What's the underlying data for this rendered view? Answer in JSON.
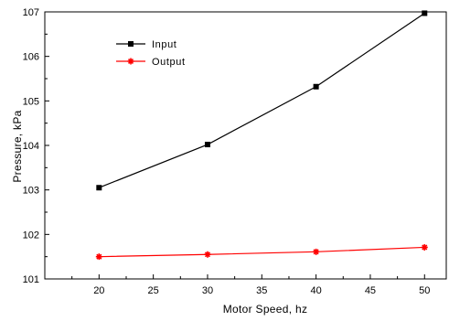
{
  "chart_data": {
    "type": "line",
    "title": "",
    "xlabel": "Motor Speed, hz",
    "ylabel": "Pressure, kPa",
    "xlim": [
      15,
      52
    ],
    "ylim": [
      101,
      107
    ],
    "x_ticks": [
      20,
      25,
      30,
      35,
      40,
      45,
      50
    ],
    "y_ticks": [
      101,
      102,
      103,
      104,
      105,
      106,
      107
    ],
    "grid": false,
    "legend_position": "top-left",
    "series": [
      {
        "name": "Input",
        "color": "#000000",
        "marker": "square",
        "x": [
          20,
          30,
          40,
          50
        ],
        "y": [
          103.05,
          104.02,
          105.32,
          106.97
        ]
      },
      {
        "name": "Output",
        "color": "#ff0000",
        "marker": "star",
        "x": [
          20,
          30,
          40,
          50
        ],
        "y": [
          101.5,
          101.55,
          101.61,
          101.71
        ]
      }
    ]
  }
}
